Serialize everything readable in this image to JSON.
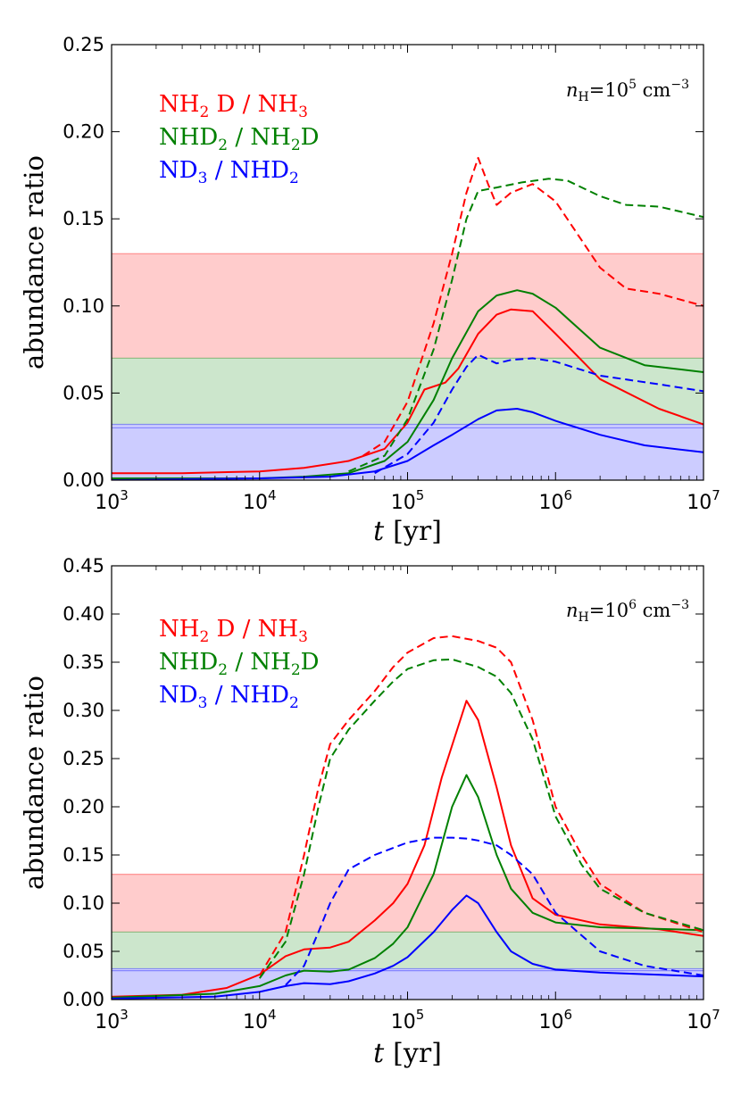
{
  "chart_data": [
    {
      "type": "line",
      "title": "",
      "annotation": {
        "n": "n",
        "sub": "H",
        "eq": "=10",
        "exp": "5",
        "unit": " cm",
        "unit_exp": "−3"
      },
      "xlabel": {
        "var": "t",
        "unit": "[yr]"
      },
      "ylabel": "abundance ratio",
      "xscale": "log",
      "xlim": [
        1000,
        10000000
      ],
      "ylim": [
        0,
        0.25
      ],
      "x_ticks": [
        {
          "base": "10",
          "exp": "3"
        },
        {
          "base": "10",
          "exp": "4"
        },
        {
          "base": "10",
          "exp": "5"
        },
        {
          "base": "10",
          "exp": "6"
        },
        {
          "base": "10",
          "exp": "7"
        }
      ],
      "y_ticks": [
        "0.00",
        "0.05",
        "0.10",
        "0.15",
        "0.20",
        "0.25"
      ],
      "bands": [
        {
          "color": "#ff0000",
          "ymin": 0.07,
          "ymax": 0.13
        },
        {
          "color": "#008000",
          "ymin": 0.032,
          "ymax": 0.07
        },
        {
          "color": "#0000ff",
          "ymin": 0.0,
          "ymax": 0.03
        },
        {
          "color": "#0000ff",
          "ymin": 0.03,
          "ymax": 0.032
        }
      ],
      "legend_position": "top-left",
      "series": [
        {
          "name": "NH2D / NH3",
          "label": [
            {
              "t": "NH"
            },
            {
              "t": "2",
              "sub": true
            },
            {
              "t": " D / NH"
            },
            {
              "t": "3",
              "sub": true
            }
          ],
          "color": "#ff0000",
          "style": "solid",
          "x": [
            1000,
            3000,
            10000,
            20000,
            40000,
            70000,
            100000,
            130000,
            180000,
            220000,
            300000,
            400000,
            500000,
            700000,
            1000000,
            2000000,
            5000000,
            10000000
          ],
          "y": [
            0.004,
            0.004,
            0.005,
            0.007,
            0.011,
            0.018,
            0.033,
            0.052,
            0.056,
            0.064,
            0.084,
            0.095,
            0.098,
            0.097,
            0.084,
            0.058,
            0.041,
            0.032
          ]
        },
        {
          "name": "NHD2 / NH2D",
          "label": [
            {
              "t": "NHD"
            },
            {
              "t": "2",
              "sub": true
            },
            {
              "t": " / NH"
            },
            {
              "t": "2",
              "sub": true
            },
            {
              "t": "D"
            }
          ],
          "color": "#008000",
          "style": "solid",
          "x": [
            1000,
            10000,
            20000,
            40000,
            70000,
            100000,
            150000,
            200000,
            300000,
            400000,
            550000,
            700000,
            1000000,
            2000000,
            4000000,
            10000000
          ],
          "y": [
            0.001,
            0.001,
            0.002,
            0.004,
            0.011,
            0.022,
            0.046,
            0.07,
            0.097,
            0.106,
            0.109,
            0.107,
            0.099,
            0.076,
            0.066,
            0.062
          ]
        },
        {
          "name": "ND3 / NHD2",
          "label": [
            {
              "t": "ND"
            },
            {
              "t": "3",
              "sub": true
            },
            {
              "t": " / NHD"
            },
            {
              "t": "2",
              "sub": true
            }
          ],
          "color": "#0000ff",
          "style": "solid",
          "x": [
            1000,
            10000,
            30000,
            60000,
            100000,
            150000,
            200000,
            300000,
            400000,
            550000,
            700000,
            1000000,
            2000000,
            4000000,
            10000000
          ],
          "y": [
            0.0,
            0.001,
            0.002,
            0.005,
            0.011,
            0.02,
            0.026,
            0.035,
            0.04,
            0.041,
            0.039,
            0.034,
            0.026,
            0.02,
            0.016
          ]
        },
        {
          "name": "NH2D / NH3 (dashed)",
          "color": "#ff0000",
          "style": "dashed",
          "x": [
            50000,
            70000,
            100000,
            150000,
            200000,
            250000,
            300000,
            350000,
            400000,
            500000,
            700000,
            1000000,
            2000000,
            3000000,
            5000000,
            10000000
          ],
          "y": [
            0.014,
            0.022,
            0.045,
            0.09,
            0.13,
            0.165,
            0.185,
            0.17,
            0.158,
            0.165,
            0.17,
            0.16,
            0.122,
            0.11,
            0.107,
            0.1
          ]
        },
        {
          "name": "NHD2 / NH2D (dashed)",
          "color": "#008000",
          "style": "dashed",
          "x": [
            40000,
            70000,
            100000,
            150000,
            200000,
            250000,
            300000,
            400000,
            600000,
            900000,
            1200000,
            2000000,
            3000000,
            5000000,
            10000000
          ],
          "y": [
            0.005,
            0.014,
            0.035,
            0.075,
            0.115,
            0.15,
            0.166,
            0.168,
            0.171,
            0.173,
            0.172,
            0.163,
            0.158,
            0.157,
            0.151
          ]
        },
        {
          "name": "ND3 / NHD2 (dashed)",
          "color": "#0000ff",
          "style": "dashed",
          "x": [
            60000,
            100000,
            150000,
            200000,
            250000,
            300000,
            400000,
            500000,
            700000,
            1000000,
            2000000,
            5000000,
            10000000
          ],
          "y": [
            0.004,
            0.015,
            0.033,
            0.052,
            0.065,
            0.072,
            0.067,
            0.069,
            0.07,
            0.068,
            0.06,
            0.055,
            0.051
          ]
        }
      ]
    },
    {
      "type": "line",
      "title": "",
      "annotation": {
        "n": "n",
        "sub": "H",
        "eq": "=10",
        "exp": "6",
        "unit": " cm",
        "unit_exp": "−3"
      },
      "xlabel": {
        "var": "t",
        "unit": "[yr]"
      },
      "ylabel": "abundance ratio",
      "xscale": "log",
      "xlim": [
        1000,
        10000000
      ],
      "ylim": [
        0,
        0.45
      ],
      "x_ticks": [
        {
          "base": "10",
          "exp": "3"
        },
        {
          "base": "10",
          "exp": "4"
        },
        {
          "base": "10",
          "exp": "5"
        },
        {
          "base": "10",
          "exp": "6"
        },
        {
          "base": "10",
          "exp": "7"
        }
      ],
      "y_ticks": [
        "0.00",
        "0.05",
        "0.10",
        "0.15",
        "0.20",
        "0.25",
        "0.30",
        "0.35",
        "0.40",
        "0.45"
      ],
      "bands": [
        {
          "color": "#ff0000",
          "ymin": 0.07,
          "ymax": 0.13
        },
        {
          "color": "#008000",
          "ymin": 0.032,
          "ymax": 0.07
        },
        {
          "color": "#0000ff",
          "ymin": 0.0,
          "ymax": 0.03
        },
        {
          "color": "#0000ff",
          "ymin": 0.03,
          "ymax": 0.032
        }
      ],
      "legend_position": "top-left",
      "series": [
        {
          "name": "NH2D / NH3",
          "label": [
            {
              "t": "NH"
            },
            {
              "t": "2",
              "sub": true
            },
            {
              "t": " D / NH"
            },
            {
              "t": "3",
              "sub": true
            }
          ],
          "color": "#ff0000",
          "style": "solid",
          "x": [
            1000,
            3000,
            6000,
            10000,
            15000,
            20000,
            30000,
            40000,
            60000,
            80000,
            100000,
            130000,
            170000,
            250000,
            300000,
            400000,
            500000,
            700000,
            1000000,
            2000000,
            5000000,
            10000000
          ],
          "y": [
            0.003,
            0.005,
            0.012,
            0.026,
            0.045,
            0.052,
            0.054,
            0.06,
            0.082,
            0.1,
            0.12,
            0.16,
            0.23,
            0.31,
            0.29,
            0.22,
            0.16,
            0.105,
            0.088,
            0.078,
            0.073,
            0.066
          ]
        },
        {
          "name": "NHD2 / NH2D",
          "label": [
            {
              "t": "NHD"
            },
            {
              "t": "2",
              "sub": true
            },
            {
              "t": " / NH"
            },
            {
              "t": "2",
              "sub": true
            },
            {
              "t": "D"
            }
          ],
          "color": "#008000",
          "style": "solid",
          "x": [
            1000,
            5000,
            10000,
            15000,
            20000,
            30000,
            40000,
            60000,
            80000,
            100000,
            150000,
            200000,
            250000,
            300000,
            400000,
            500000,
            700000,
            1000000,
            2000000,
            10000000
          ],
          "y": [
            0.002,
            0.006,
            0.014,
            0.025,
            0.03,
            0.029,
            0.031,
            0.043,
            0.058,
            0.075,
            0.13,
            0.2,
            0.233,
            0.21,
            0.15,
            0.115,
            0.09,
            0.08,
            0.075,
            0.072
          ]
        },
        {
          "name": "ND3 / NHD2",
          "label": [
            {
              "t": "ND"
            },
            {
              "t": "3",
              "sub": true
            },
            {
              "t": " / NHD"
            },
            {
              "t": "2",
              "sub": true
            }
          ],
          "color": "#0000ff",
          "style": "solid",
          "x": [
            1000,
            5000,
            10000,
            15000,
            20000,
            30000,
            40000,
            60000,
            80000,
            100000,
            150000,
            200000,
            250000,
            300000,
            400000,
            500000,
            700000,
            1000000,
            2000000,
            10000000
          ],
          "y": [
            0.001,
            0.003,
            0.008,
            0.014,
            0.017,
            0.016,
            0.019,
            0.027,
            0.035,
            0.044,
            0.07,
            0.093,
            0.108,
            0.1,
            0.07,
            0.05,
            0.037,
            0.031,
            0.028,
            0.024
          ]
        },
        {
          "name": "NH2D / NH3 (dashed)",
          "color": "#ff0000",
          "style": "dashed",
          "x": [
            10000,
            15000,
            20000,
            25000,
            30000,
            40000,
            60000,
            80000,
            100000,
            150000,
            200000,
            300000,
            400000,
            500000,
            700000,
            1000000,
            1500000,
            2000000,
            4000000,
            10000000
          ],
          "y": [
            0.025,
            0.07,
            0.15,
            0.22,
            0.265,
            0.29,
            0.32,
            0.345,
            0.36,
            0.375,
            0.377,
            0.372,
            0.365,
            0.35,
            0.29,
            0.2,
            0.15,
            0.12,
            0.09,
            0.07
          ]
        },
        {
          "name": "NHD2 / NH2D (dashed)",
          "color": "#008000",
          "style": "dashed",
          "x": [
            10000,
            15000,
            20000,
            25000,
            30000,
            40000,
            60000,
            80000,
            100000,
            150000,
            200000,
            300000,
            400000,
            500000,
            700000,
            1000000,
            1500000,
            2000000,
            4000000,
            10000000
          ],
          "y": [
            0.022,
            0.06,
            0.13,
            0.2,
            0.25,
            0.28,
            0.31,
            0.33,
            0.343,
            0.352,
            0.353,
            0.345,
            0.335,
            0.318,
            0.27,
            0.19,
            0.14,
            0.115,
            0.09,
            0.072
          ]
        },
        {
          "name": "ND3 / NHD2 (dashed)",
          "color": "#0000ff",
          "style": "dashed",
          "x": [
            15000,
            20000,
            25000,
            30000,
            40000,
            60000,
            100000,
            150000,
            200000,
            250000,
            300000,
            400000,
            500000,
            700000,
            1000000,
            2000000,
            4000000,
            10000000
          ],
          "y": [
            0.015,
            0.035,
            0.07,
            0.1,
            0.135,
            0.15,
            0.163,
            0.168,
            0.168,
            0.167,
            0.165,
            0.16,
            0.15,
            0.13,
            0.09,
            0.05,
            0.035,
            0.025
          ]
        }
      ]
    }
  ]
}
